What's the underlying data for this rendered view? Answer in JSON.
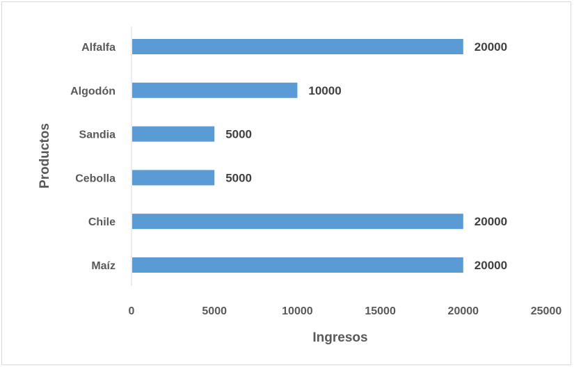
{
  "chart_data": {
    "type": "bar",
    "orientation": "horizontal",
    "categories": [
      "Alfalfa",
      "Algodón",
      "Sandia",
      "Cebolla",
      "Chile",
      "Maíz"
    ],
    "values": [
      20000,
      10000,
      5000,
      5000,
      20000,
      20000
    ],
    "data_labels": [
      "20000",
      "10000",
      "5000",
      "5000",
      "20000",
      "20000"
    ],
    "title": "",
    "xlabel": "Ingresos",
    "ylabel": "Productos",
    "xlim": [
      0,
      25000
    ],
    "x_ticks": [
      0,
      5000,
      10000,
      15000,
      20000,
      25000
    ],
    "x_tick_labels": [
      "0",
      "5000",
      "10000",
      "15000",
      "20000",
      "25000"
    ],
    "grid": false,
    "legend": "none",
    "bar_color": "#5b9bd5"
  }
}
